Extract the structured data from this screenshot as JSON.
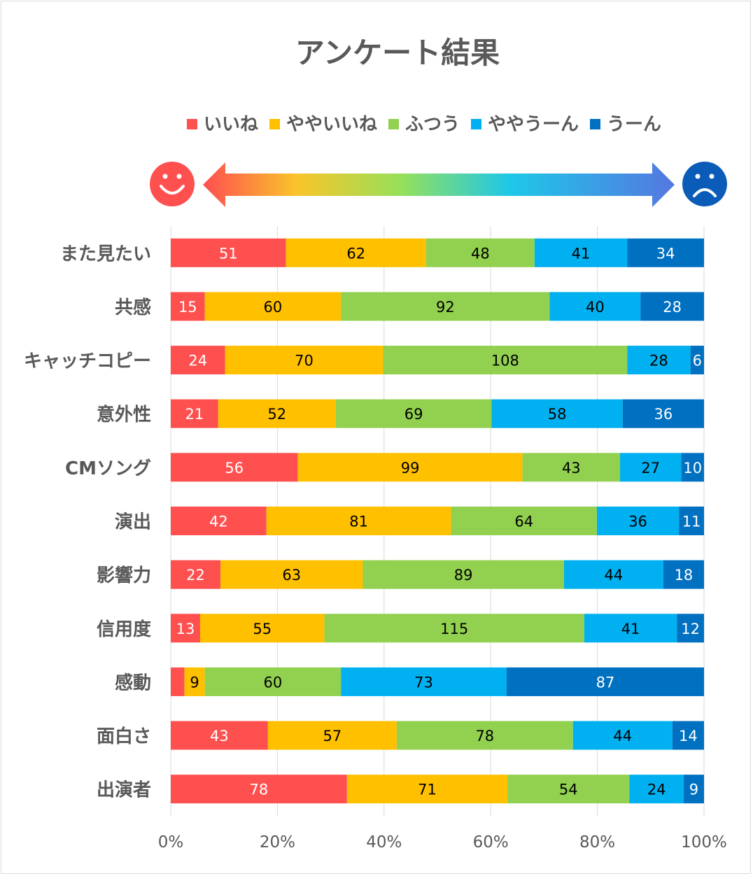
{
  "chart_data": {
    "type": "bar",
    "orientation": "horizontal",
    "stacked": "percent",
    "title": "アンケート結果",
    "legend_position": "top",
    "grid": true,
    "categories": [
      "また見たい",
      "共感",
      "キャッチコピー",
      "意外性",
      "CMソング",
      "演出",
      "影響力",
      "信用度",
      "感動",
      "面白さ",
      "出演者"
    ],
    "series": [
      {
        "name": "いいね",
        "color": "#ff5050",
        "values": [
          51,
          15,
          24,
          21,
          56,
          42,
          22,
          13,
          6,
          43,
          78
        ]
      },
      {
        "name": "ややいいね",
        "color": "#ffc000",
        "values": [
          62,
          60,
          70,
          52,
          99,
          81,
          63,
          55,
          9,
          57,
          71
        ]
      },
      {
        "name": "ふつう",
        "color": "#92d050",
        "values": [
          48,
          92,
          108,
          69,
          43,
          64,
          89,
          115,
          60,
          78,
          54
        ]
      },
      {
        "name": "ややうーん",
        "color": "#00b0f0",
        "values": [
          41,
          40,
          28,
          58,
          27,
          36,
          44,
          41,
          73,
          44,
          24
        ]
      },
      {
        "name": "うーん",
        "color": "#0070c0",
        "values": [
          34,
          28,
          6,
          36,
          10,
          11,
          18,
          12,
          87,
          14,
          9
        ]
      }
    ],
    "unlabeled_values": [
      [
        false,
        false,
        false,
        false,
        false,
        false,
        false,
        false,
        true,
        false,
        false
      ]
    ],
    "x_ticks": [
      "0%",
      "20%",
      "40%",
      "60%",
      "80%",
      "100%"
    ],
    "xlim": [
      0,
      1
    ]
  },
  "icons": {
    "left": "smiley-face-icon",
    "right": "sad-face-icon",
    "arrow": "gradient-double-arrow-icon"
  }
}
